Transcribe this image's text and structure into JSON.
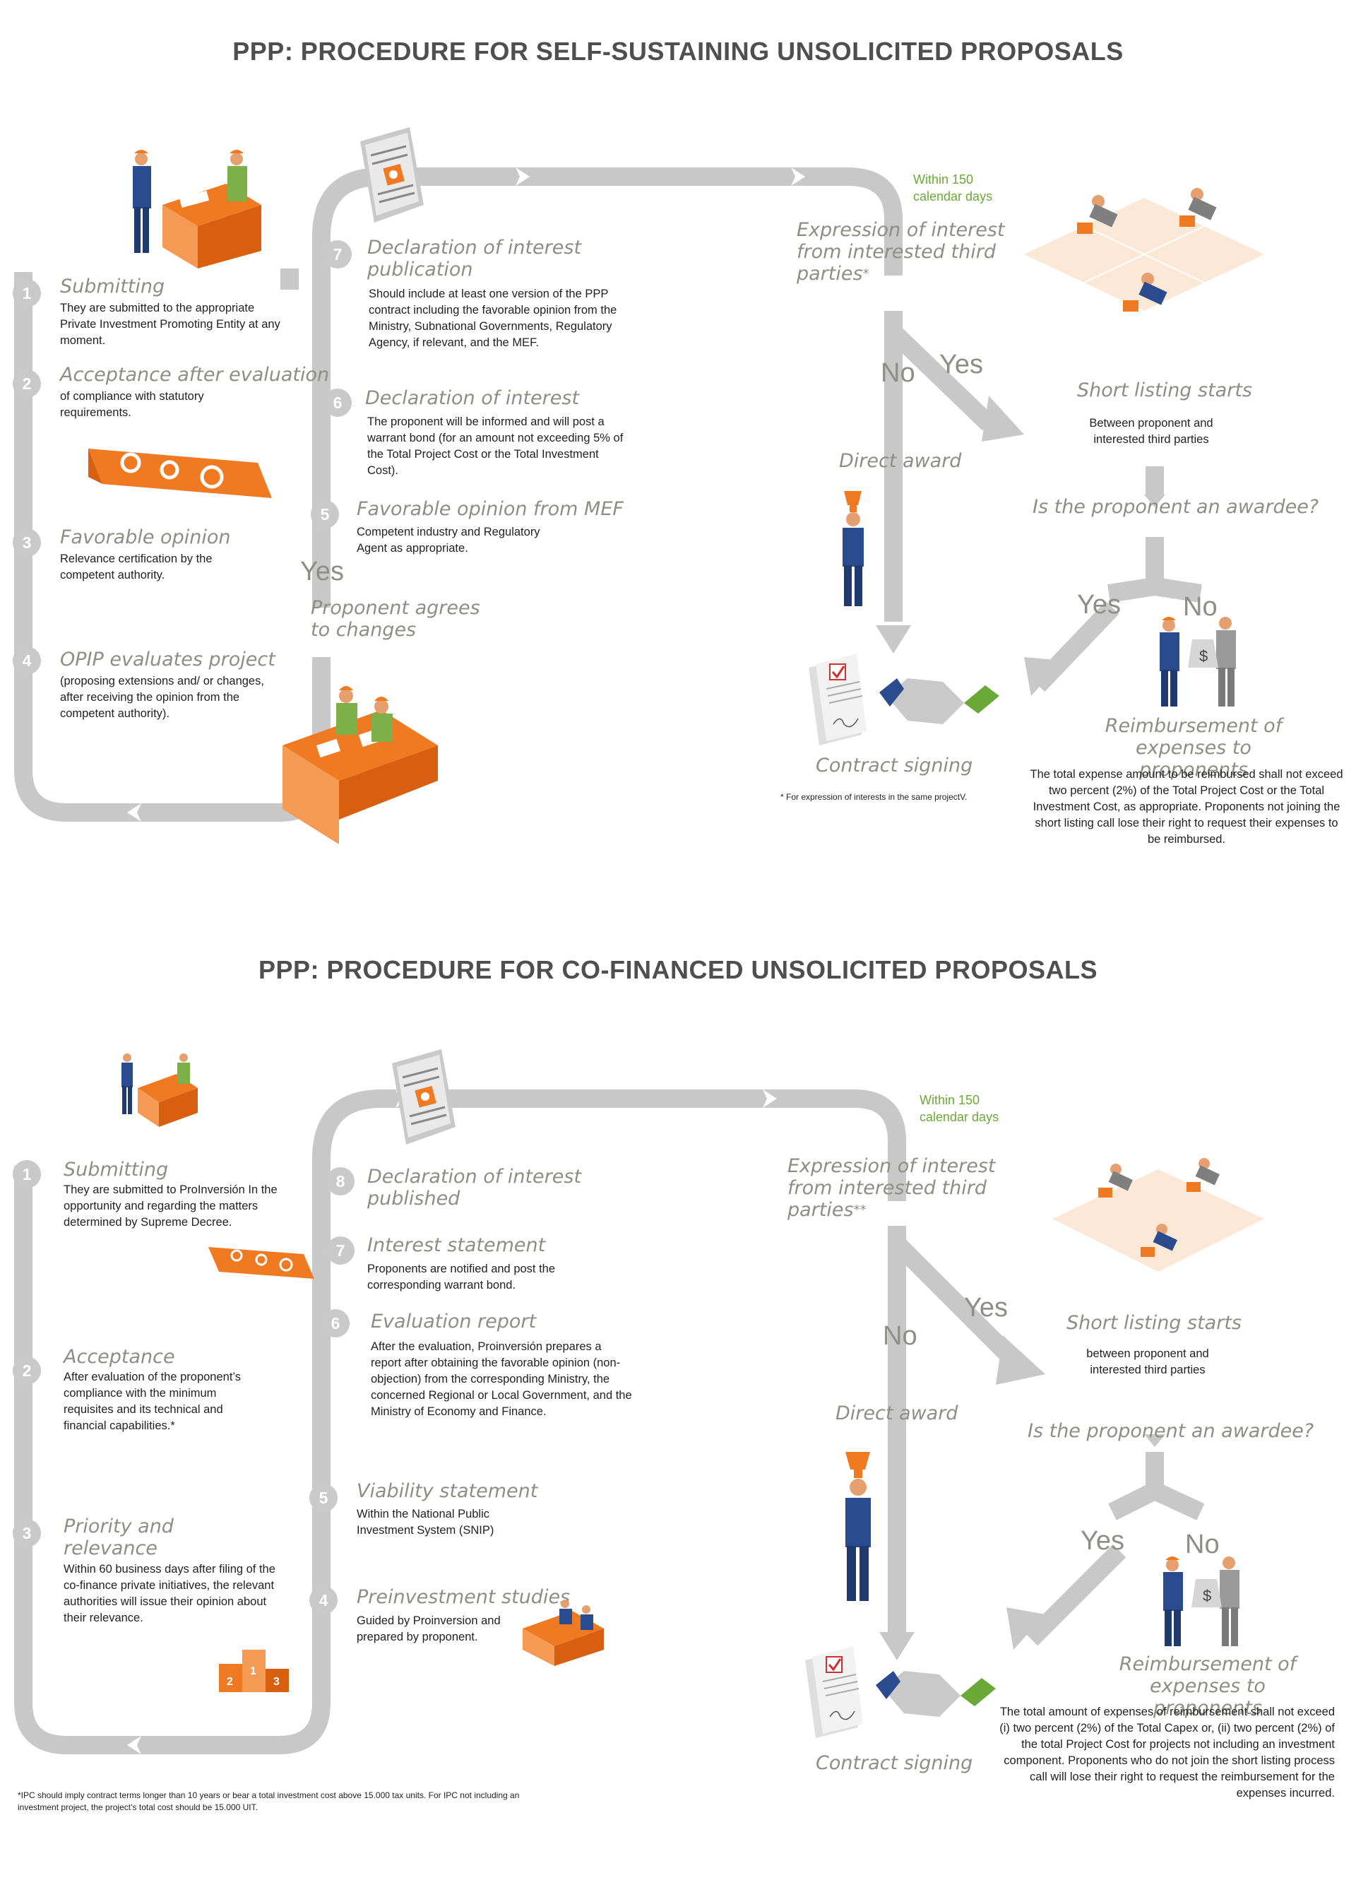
{
  "top": {
    "title": "PPP: PROCEDURE FOR SELF-SUSTAINING UNSOLICITED PROPOSALS",
    "steps": [
      {
        "num": "1",
        "title": "Submitting",
        "desc": "They are submitted to the appropriate Private Investment Promoting Entity at any moment."
      },
      {
        "num": "2",
        "title": "Acceptance after evaluation",
        "desc": "of compliance with statutory requirements."
      },
      {
        "num": "3",
        "title": "Favorable opinion",
        "desc": "Relevance certification by the competent authority."
      },
      {
        "num": "4",
        "title": "OPIP evaluates project",
        "desc": "(proposing extensions and/ or changes, after receiving the opinion from the competent authority)."
      },
      {
        "num": "5",
        "title": "Favorable opinion from MEF",
        "desc": "Competent industry and Regulatory Agent as appropriate."
      },
      {
        "num": "6",
        "title": "Declaration of interest",
        "desc": "The proponent will be informed and will post a warrant bond (for an amount not exceeding 5% of the Total Project Cost or the Total Investment Cost)."
      },
      {
        "num": "7",
        "title": "Declaration of interest publication",
        "desc": "Should include at least one version of the PPP contract including the favorable opinion from the Ministry, Subnational Governments, Regulatory Agency, if relevant, and the MEF."
      }
    ],
    "yes_agree": "Yes",
    "agree_label": "Proponent agrees to changes",
    "within": "Within 150 calendar days",
    "expression": "Expression of interest from interested third parties",
    "expression_mark": "*",
    "no_label": "No",
    "yes_label": "Yes",
    "short_listing": "Short listing starts",
    "short_listing_desc": "Between proponent and interested third parties",
    "direct_award": "Direct award",
    "awardee_question": "Is the proponent an awardee?",
    "yes2": "Yes",
    "no2": "No",
    "contract": "Contract signing",
    "footnote": "* For expression of interests in the same projectV.",
    "reimbursement": "Reimbursement of expenses to proponents",
    "reimbursement_desc": "The total expense amount to be reimbursed shall not exceed two percent (2%) of the Total Project Cost or the Total Investment Cost, as appropriate. Proponents not joining the short listing call lose their right to request their expenses to be reimbursed."
  },
  "bottom": {
    "title": "PPP: PROCEDURE FOR CO-FINANCED UNSOLICITED PROPOSALS",
    "steps": [
      {
        "num": "1",
        "title": "Submitting",
        "desc": "They are submitted to ProInversión In the opportunity and regarding the matters determined by Supreme Decree."
      },
      {
        "num": "2",
        "title": "Acceptance",
        "desc": "After evaluation of the proponent’s compliance with the minimum requisites and its technical and financial capabilities.*"
      },
      {
        "num": "3",
        "title": "Priority and relevance",
        "desc": "Within 60 business days after filing of the co-finance private initiatives, the relevant authorities will issue their opinion about their relevance."
      },
      {
        "num": "4",
        "title": "Preinvestment studies",
        "desc": "Guided by Proinversion and prepared by proponent."
      },
      {
        "num": "5",
        "title": "Viability statement",
        "desc": "Within the National Public Investment System (SNIP)"
      },
      {
        "num": "6",
        "title": "Evaluation report",
        "desc": "After the evaluation, Proinversión prepares a report after obtaining the favorable opinion (non-objection) from the corresponding Ministry, the concerned Regional or Local Government, and the Ministry of Economy and Finance."
      },
      {
        "num": "7",
        "title": "Interest statement",
        "desc": "Proponents are notified and post the corresponding warrant bond."
      },
      {
        "num": "8",
        "title": "Declaration of interest published",
        "desc": ""
      }
    ],
    "within": "Within 150 calendar days",
    "expression": "Expression of interest from interested third parties",
    "expression_mark": "**",
    "no_label": "No",
    "yes_label": "Yes",
    "short_listing": "Short listing starts",
    "short_listing_desc": "between proponent and interested third parties",
    "direct_award": "Direct award",
    "awardee_question": "Is the proponent an awardee?",
    "yes2": "Yes",
    "no2": "No",
    "contract": "Contract signing",
    "reimbursement": "Reimbursement of expenses to proponents",
    "reimbursement_desc": "The total amount of expenses of reimbursement shall not exceed (i) two percent (2%) of the Total Capex or, (ii) two percent (2%) of the total Project Cost for projects not including an investment component. Proponents who do not join the short listing process call will lose their right to request the reimbursement for the expenses incurred.",
    "footnote": "*IPC should imply contract terms longer than 10 years or bear a total investment cost above 15.000 tax units. For IPC not including an investment project, the project’s total cost should be 15.000 UIT."
  },
  "colors": {
    "arrow": "#c8c8c8",
    "text_gray": "#8e8e87",
    "accent": "#f07a22",
    "green": "#6aa937"
  },
  "icons": [
    "meeting-icon",
    "newspaper-icon",
    "map-icon",
    "trophy-man-icon",
    "handshake-icon",
    "contract-icon",
    "runners-icon",
    "money-bag-icon",
    "podium-icon"
  ]
}
